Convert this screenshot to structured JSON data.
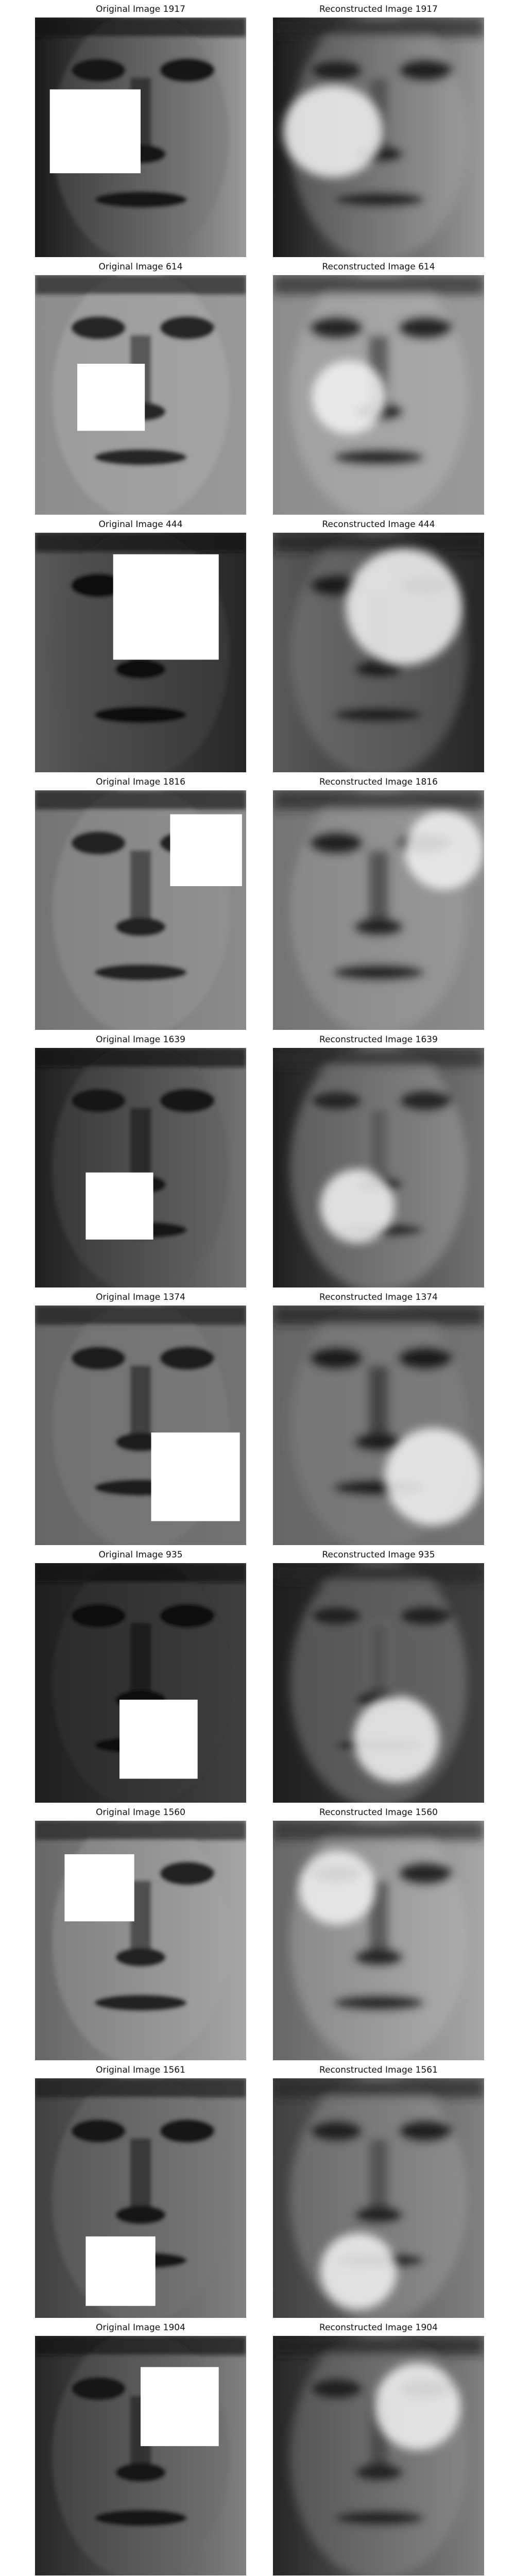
{
  "figure": {
    "pairs": [
      {
        "original_title": "Original Image 1917",
        "reconstructed_title": "Reconstructed Image 1917",
        "mask": [
          0.07,
          0.3,
          0.43,
          0.35
        ],
        "tone": [
          0.1,
          0.6
        ],
        "recon_tone": 0.55
      },
      {
        "original_title": "Original Image 614",
        "reconstructed_title": "Reconstructed Image 614",
        "mask": [
          0.2,
          0.37,
          0.32,
          0.28
        ],
        "tone": [
          0.55,
          0.6
        ],
        "recon_tone": 0.62
      },
      {
        "original_title": "Original Image 444",
        "reconstructed_title": "Reconstructed Image 444",
        "mask": [
          0.37,
          0.09,
          0.5,
          0.44
        ],
        "tone": [
          0.35,
          0.15
        ],
        "recon_tone": 0.45
      },
      {
        "original_title": "Original Image 1816",
        "reconstructed_title": "Reconstructed Image 1816",
        "mask": [
          0.64,
          0.1,
          0.34,
          0.3
        ],
        "tone": [
          0.45,
          0.55
        ],
        "recon_tone": 0.55
      },
      {
        "original_title": "Original Image 1639",
        "reconstructed_title": "Reconstructed Image 1639",
        "mask": [
          0.24,
          0.52,
          0.32,
          0.28
        ],
        "tone": [
          0.12,
          0.45
        ],
        "recon_tone": 0.6
      },
      {
        "original_title": "Original Image 1374",
        "reconstructed_title": "Reconstructed Image 1374",
        "mask": [
          0.55,
          0.53,
          0.42,
          0.37
        ],
        "tone": [
          0.4,
          0.45
        ],
        "recon_tone": 0.45
      },
      {
        "original_title": "Original Image 935",
        "reconstructed_title": "Reconstructed Image 935",
        "mask": [
          0.4,
          0.57,
          0.37,
          0.33
        ],
        "tone": [
          0.12,
          0.25
        ],
        "recon_tone": 0.55
      },
      {
        "original_title": "Original Image 1560",
        "reconstructed_title": "Reconstructed Image 1560",
        "mask": [
          0.14,
          0.14,
          0.33,
          0.28
        ],
        "tone": [
          0.4,
          0.65
        ],
        "recon_tone": 0.6
      },
      {
        "original_title": "Original Image 1561",
        "reconstructed_title": "Reconstructed Image 1561",
        "mask": [
          0.24,
          0.66,
          0.33,
          0.29
        ],
        "tone": [
          0.25,
          0.5
        ],
        "recon_tone": 0.55
      },
      {
        "original_title": "Original Image 1904",
        "reconstructed_title": "Reconstructed Image 1904",
        "mask": [
          0.5,
          0.13,
          0.37,
          0.33
        ],
        "tone": [
          0.15,
          0.5
        ],
        "recon_tone": 0.5
      }
    ]
  }
}
